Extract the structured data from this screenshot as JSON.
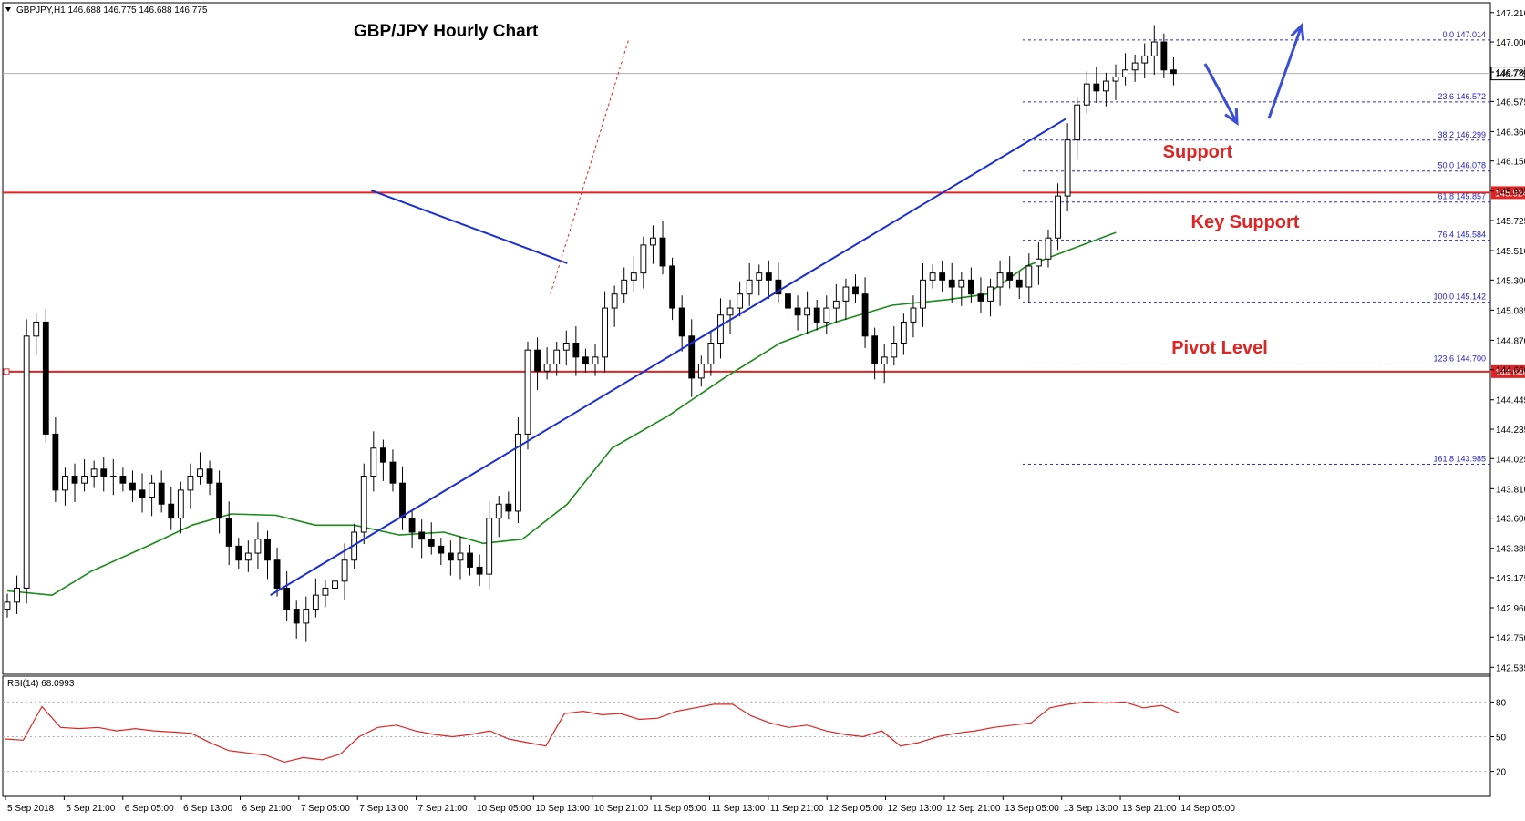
{
  "chart_data": {
    "type": "candlestick",
    "info_label": "GBPJPY,H1  146.688 146.775 146.688 146.775",
    "title": "GBP/JPY Hourly Chart",
    "ylim": [
      142.485,
      147.28
    ],
    "price_ticks": [
      "147.210",
      "147.000",
      "146.785",
      "146.575",
      "146.360",
      "146.150",
      "145.935",
      "145.725",
      "145.510",
      "145.300",
      "145.085",
      "144.870",
      "144.660",
      "144.445",
      "144.235",
      "144.025",
      "143.810",
      "143.600",
      "143.385",
      "143.175",
      "142.960",
      "142.750",
      "142.535"
    ],
    "x_labels": [
      "5 Sep 2018",
      "5 Sep 21:00",
      "6 Sep 05:00",
      "6 Sep 13:00",
      "6 Sep 21:00",
      "7 Sep 05:00",
      "7 Sep 13:00",
      "7 Sep 21:00",
      "10 Sep 05:00",
      "10 Sep 13:00",
      "10 Sep 21:00",
      "11 Sep 05:00",
      "11 Sep 13:00",
      "11 Sep 21:00",
      "12 Sep 05:00",
      "12 Sep 13:00",
      "12 Sep 21:00",
      "13 Sep 05:00",
      "13 Sep 13:00",
      "13 Sep 21:00",
      "14 Sep 05:00"
    ],
    "current_price": {
      "label": "146.775",
      "value": 146.775
    },
    "horizontal_levels": [
      {
        "label": "145.924",
        "value": 145.924
      },
      {
        "label": "144.646",
        "value": 144.646
      }
    ],
    "fibonacci": [
      {
        "label": "0.0 147.014",
        "value": 147.014
      },
      {
        "label": "23.6 146.572",
        "value": 146.572
      },
      {
        "label": "38.2 146.299",
        "value": 146.299
      },
      {
        "label": "50.0 146.078",
        "value": 146.078
      },
      {
        "label": "61.8 145.857",
        "value": 145.857
      },
      {
        "label": "76.4 145.584",
        "value": 145.584
      },
      {
        "label": "100.0 145.142",
        "value": 145.142
      },
      {
        "label": "123.6 144.700",
        "value": 144.7
      },
      {
        "label": "161.8 143.985",
        "value": 143.985
      }
    ],
    "closes": [
      143.0,
      143.1,
      144.9,
      145.0,
      144.2,
      143.8,
      143.9,
      143.85,
      143.9,
      143.95,
      143.9,
      143.9,
      143.85,
      143.8,
      143.75,
      143.85,
      143.7,
      143.6,
      143.8,
      143.9,
      143.95,
      143.85,
      143.6,
      143.4,
      143.3,
      143.35,
      143.45,
      143.3,
      143.1,
      142.95,
      142.85,
      142.95,
      143.05,
      143.1,
      143.15,
      143.3,
      143.5,
      143.9,
      144.1,
      144.0,
      143.85,
      143.6,
      143.5,
      143.45,
      143.4,
      143.35,
      143.3,
      143.35,
      143.25,
      143.2,
      143.6,
      143.7,
      143.65,
      144.2,
      144.8,
      144.65,
      144.7,
      144.8,
      144.85,
      144.75,
      144.7,
      144.75,
      145.1,
      145.2,
      145.3,
      145.35,
      145.55,
      145.6,
      145.4,
      145.1,
      144.9,
      144.6,
      144.7,
      144.85,
      145.05,
      145.1,
      145.2,
      145.3,
      145.35,
      145.3,
      145.2,
      145.1,
      145.05,
      145.1,
      145.0,
      145.1,
      145.15,
      145.25,
      145.2,
      144.9,
      144.7,
      144.75,
      144.85,
      145.0,
      145.1,
      145.3,
      145.35,
      145.3,
      145.25,
      145.3,
      145.2,
      145.15,
      145.25,
      145.35,
      145.3,
      145.25,
      145.4,
      145.45,
      145.6,
      145.9,
      146.3,
      146.55,
      146.7,
      146.65,
      146.72,
      146.75,
      146.8,
      146.85,
      146.9,
      147.0,
      146.8,
      146.775
    ],
    "ma_points": [
      [
        0,
        143.08
      ],
      [
        8,
        143.05
      ],
      [
        15,
        143.22
      ],
      [
        25,
        143.4
      ],
      [
        33,
        143.55
      ],
      [
        40,
        143.63
      ],
      [
        48,
        143.62
      ],
      [
        55,
        143.55
      ],
      [
        62,
        143.55
      ],
      [
        70,
        143.48
      ],
      [
        78,
        143.5
      ],
      [
        85,
        143.42
      ],
      [
        92,
        143.45
      ],
      [
        100,
        143.7
      ],
      [
        108,
        144.1
      ],
      [
        118,
        144.33
      ],
      [
        128,
        144.6
      ],
      [
        138,
        144.85
      ],
      [
        148,
        145.0
      ],
      [
        158,
        145.12
      ],
      [
        168,
        145.16
      ],
      [
        175,
        145.2
      ],
      [
        182,
        145.4
      ],
      [
        190,
        145.52
      ],
      [
        198,
        145.64
      ]
    ],
    "trendlines": [
      {
        "name": "rising",
        "points": [
          [
            47,
            143.05
          ],
          [
            189,
            146.45
          ]
        ]
      },
      {
        "name": "falling",
        "points": [
          [
            65,
            145.94
          ],
          [
            100,
            145.42
          ]
        ]
      }
    ],
    "fib_swing_line": [
      [
        97,
        145.2
      ],
      [
        111,
        147.02
      ]
    ],
    "annotations": [
      {
        "label": "Support",
        "value": 146.22
      },
      {
        "label": "Key Support",
        "value": 145.72
      },
      {
        "label": "Pivot Level",
        "value": 144.82
      }
    ],
    "rsi": {
      "label": "RSI(14) 68.0993",
      "ticks": [
        "80",
        "50",
        "20"
      ],
      "levels": [
        80,
        50,
        20
      ],
      "ylim": [
        0,
        100
      ],
      "values": [
        48,
        47,
        76,
        58,
        57,
        58,
        55,
        57,
        55,
        54,
        53,
        45,
        38,
        36,
        34,
        28,
        32,
        30,
        35,
        50,
        58,
        60,
        55,
        52,
        50,
        52,
        55,
        48,
        45,
        42,
        70,
        72,
        69,
        70,
        65,
        66,
        72,
        75,
        78,
        78,
        68,
        62,
        58,
        60,
        55,
        52,
        50,
        55,
        42,
        45,
        50,
        53,
        55,
        58,
        60,
        62,
        75,
        78,
        80,
        79,
        80,
        75,
        77,
        70
      ]
    },
    "colors": {
      "candle": "#000000",
      "moving_average": "#1a8a1a",
      "trendline": "#1b2fd1",
      "level": "#e02424",
      "fibonacci": "#2a2ad8",
      "rsi": "#e02424",
      "arrow": "#3a4fd6"
    }
  }
}
